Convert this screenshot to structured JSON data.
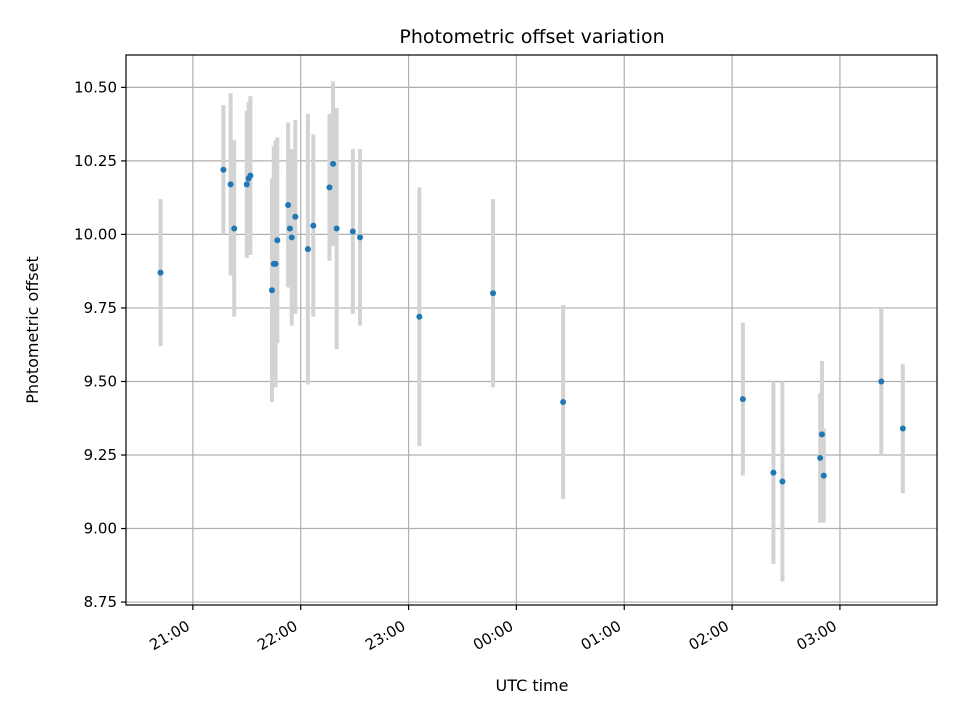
{
  "chart_data": {
    "type": "scatter",
    "title": "Photometric offset variation",
    "xlabel": "UTC time",
    "ylabel": "Photometric offset",
    "x_ticks": [
      "21:00",
      "22:00",
      "23:00",
      "00:00",
      "01:00",
      "02:00",
      "03:00"
    ],
    "x_tick_hours": [
      21,
      22,
      23,
      24,
      25,
      26,
      27
    ],
    "y_ticks": [
      "8.75",
      "9.00",
      "9.25",
      "9.50",
      "9.75",
      "10.00",
      "10.25",
      "10.50"
    ],
    "y_tick_values": [
      8.75,
      9.0,
      9.25,
      9.5,
      9.75,
      10.0,
      10.25,
      10.5
    ],
    "xlim_hours": [
      20.38,
      27.9
    ],
    "ylim": [
      8.74,
      10.61
    ],
    "grid": true,
    "point_color": "#1f77b4",
    "errorbar_color": "#d3d3d3",
    "points": [
      {
        "x": "20:42",
        "y": 9.87,
        "err": 0.25
      },
      {
        "x": "21:17",
        "y": 10.22,
        "err": 0.22
      },
      {
        "x": "21:21",
        "y": 10.17,
        "err": 0.31
      },
      {
        "x": "21:23",
        "y": 10.02,
        "err": 0.3
      },
      {
        "x": "21:30",
        "y": 10.17,
        "err": 0.25
      },
      {
        "x": "21:31",
        "y": 10.19,
        "err": 0.26
      },
      {
        "x": "21:32",
        "y": 10.2,
        "err": 0.27
      },
      {
        "x": "21:44",
        "y": 9.81,
        "err": 0.38
      },
      {
        "x": "21:45",
        "y": 9.9,
        "err": 0.4
      },
      {
        "x": "21:46",
        "y": 9.9,
        "err": 0.42
      },
      {
        "x": "21:47",
        "y": 9.98,
        "err": 0.35
      },
      {
        "x": "21:53",
        "y": 10.1,
        "err": 0.28
      },
      {
        "x": "21:54",
        "y": 10.02,
        "err": 0.2
      },
      {
        "x": "21:55",
        "y": 9.99,
        "err": 0.3
      },
      {
        "x": "21:57",
        "y": 10.06,
        "err": 0.33
      },
      {
        "x": "22:04",
        "y": 9.95,
        "err": 0.46
      },
      {
        "x": "22:07",
        "y": 10.03,
        "err": 0.31
      },
      {
        "x": "22:16",
        "y": 10.16,
        "err": 0.25
      },
      {
        "x": "22:18",
        "y": 10.24,
        "err": 0.28
      },
      {
        "x": "22:20",
        "y": 10.02,
        "err": 0.41
      },
      {
        "x": "22:29",
        "y": 10.01,
        "err": 0.28
      },
      {
        "x": "22:33",
        "y": 9.99,
        "err": 0.3
      },
      {
        "x": "23:06",
        "y": 9.72,
        "err": 0.44
      },
      {
        "x": "23:47",
        "y": 9.8,
        "err": 0.32
      },
      {
        "x": "00:26",
        "y": 9.43,
        "err": 0.33
      },
      {
        "x": "02:06",
        "y": 9.44,
        "err": 0.26
      },
      {
        "x": "02:23",
        "y": 9.19,
        "err": 0.31
      },
      {
        "x": "02:28",
        "y": 9.16,
        "err": 0.34
      },
      {
        "x": "02:49",
        "y": 9.24,
        "err": 0.22
      },
      {
        "x": "02:50",
        "y": 9.32,
        "err": 0.25
      },
      {
        "x": "02:51",
        "y": 9.18,
        "err": 0.16
      },
      {
        "x": "03:23",
        "y": 9.5,
        "err": 0.25
      },
      {
        "x": "03:35",
        "y": 9.34,
        "err": 0.22
      }
    ]
  }
}
